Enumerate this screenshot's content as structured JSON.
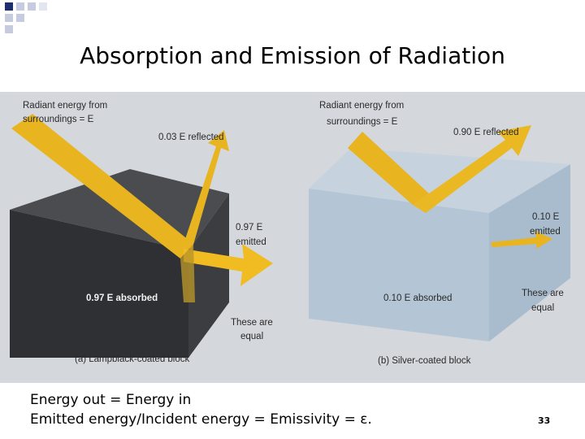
{
  "header": {
    "title": "Absorption and Emission of  Radiation"
  },
  "figure": {
    "panels": [
      {
        "incident": [
          "Radiant energy from",
          "surroundings = E"
        ],
        "reflected": "0.03 E reflected",
        "emitted": [
          "0.97 E",
          "emitted"
        ],
        "absorbed": "0.97 E absorbed",
        "equal": [
          "These are",
          "equal"
        ],
        "caption": "(a) Lampblack-coated block"
      },
      {
        "incident": [
          "Radiant energy from",
          "surroundings = E"
        ],
        "reflected": "0.90 E reflected",
        "emitted": [
          "0.10 E",
          "emitted"
        ],
        "absorbed": "0.10 E absorbed",
        "equal": [
          "These are",
          "equal"
        ],
        "caption": "(b) Silver-coated block"
      }
    ]
  },
  "body": {
    "lines": [
      "Energy out = Energy in",
      "Emitted energy/Incident energy = Emissivity = ε."
    ]
  },
  "page_number": "33"
}
